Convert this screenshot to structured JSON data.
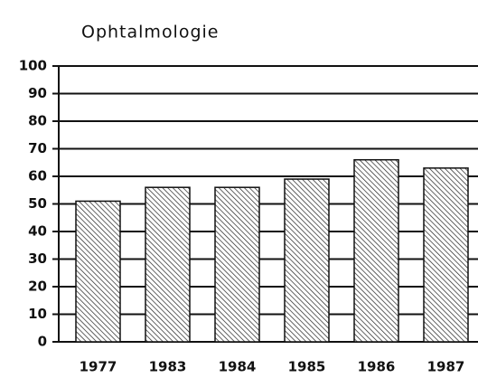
{
  "chart_data": {
    "type": "bar",
    "title": "Ophtalmologie",
    "categories": [
      "1977",
      "1983",
      "1984",
      "1985",
      "1986",
      "1987"
    ],
    "values": [
      51,
      56,
      56,
      59,
      66,
      63
    ],
    "color": "#111111",
    "ylim": [
      0,
      100
    ],
    "yticks": [
      0,
      10,
      20,
      30,
      40,
      50,
      60,
      70,
      80,
      90,
      100
    ],
    "grid": true
  }
}
